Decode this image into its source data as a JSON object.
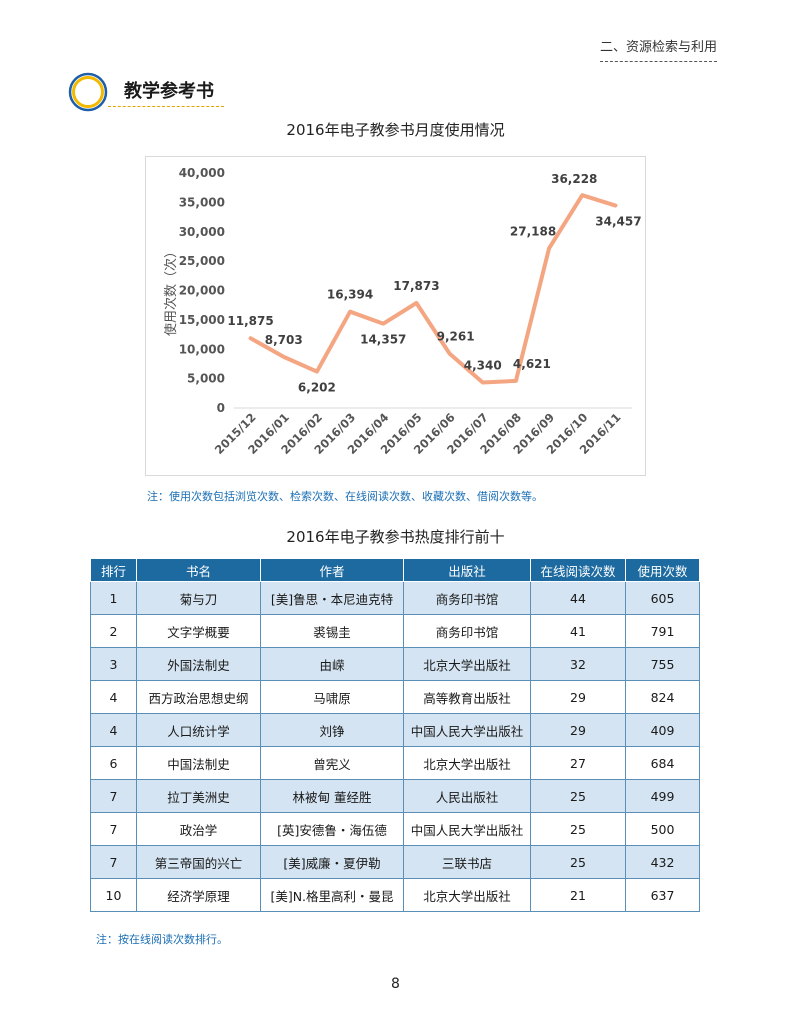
{
  "header": {
    "section": "二、资源检索与利用"
  },
  "section": {
    "title": "教学参考书"
  },
  "chart_data": {
    "type": "line",
    "title": "2016年电子教参书月度使用情况",
    "xlabel": "",
    "ylabel": "使用次数（次）",
    "ylim": [
      0,
      40000
    ],
    "yticks": [
      "0",
      "5,000",
      "10,000",
      "15,000",
      "20,000",
      "25,000",
      "30,000",
      "35,000",
      "40,000"
    ],
    "ytick_values": [
      0,
      5000,
      10000,
      15000,
      20000,
      25000,
      30000,
      35000,
      40000
    ],
    "categories": [
      "2015/12",
      "2016/01",
      "2016/02",
      "2016/03",
      "2016/04",
      "2016/05",
      "2016/06",
      "2016/07",
      "2016/08",
      "2016/09",
      "2016/10",
      "2016/11"
    ],
    "values": [
      11875,
      8703,
      6202,
      16394,
      14357,
      17873,
      9261,
      4340,
      4621,
      27188,
      36228,
      34457
    ],
    "labels": [
      "11,875",
      "8,703",
      "6,202",
      "16,394",
      "14,357",
      "17,873",
      "9,261",
      "4,340",
      "4,621",
      "27,188",
      "36,228",
      "34,457"
    ],
    "line_color": "#f4a582",
    "grid": false,
    "legend": "none"
  },
  "chart_note": "注：使用次数包括浏览次数、检索次数、在线阅读次数、收藏次数、借阅次数等。",
  "table": {
    "title": "2016年电子教参书热度排行前十",
    "headers": [
      "排行",
      "书名",
      "作者",
      "出版社",
      "在线阅读次数",
      "使用次数"
    ],
    "rows": [
      [
        "1",
        "菊与刀",
        "[美]鲁思・本尼迪克特",
        "商务印书馆",
        "44",
        "605"
      ],
      [
        "2",
        "文字学概要",
        "裘锡圭",
        "商务印书馆",
        "41",
        "791"
      ],
      [
        "3",
        "外国法制史",
        "由嵘",
        "北京大学出版社",
        "32",
        "755"
      ],
      [
        "4",
        "西方政治思想史纲",
        "马啸原",
        "高等教育出版社",
        "29",
        "824"
      ],
      [
        "4",
        "人口统计学",
        "刘铮",
        "中国人民大学出版社",
        "29",
        "409"
      ],
      [
        "6",
        "中国法制史",
        "曾宪义",
        "北京大学出版社",
        "27",
        "684"
      ],
      [
        "7",
        "拉丁美洲史",
        "林被甸 董经胜",
        "人民出版社",
        "25",
        "499"
      ],
      [
        "7",
        "政治学",
        "[英]安德鲁・海伍德",
        "中国人民大学出版社",
        "25",
        "500"
      ],
      [
        "7",
        "第三帝国的兴亡",
        "[美]威廉・夏伊勒",
        "三联书店",
        "25",
        "432"
      ],
      [
        "10",
        "经济学原理",
        "[美]N.格里高利・曼昆",
        "北京大学出版社",
        "21",
        "637"
      ]
    ],
    "note": "注：按在线阅读次数排行。"
  },
  "page": {
    "number": "8"
  },
  "colors": {
    "header_blue": "#1c6aa0",
    "row_alt": "#d4e4f2",
    "note_blue": "#1b6fb5",
    "ring_blue": "#1d5fa8",
    "ring_gold": "#f2b900"
  },
  "icons": [
    "circle-ring-icon"
  ]
}
